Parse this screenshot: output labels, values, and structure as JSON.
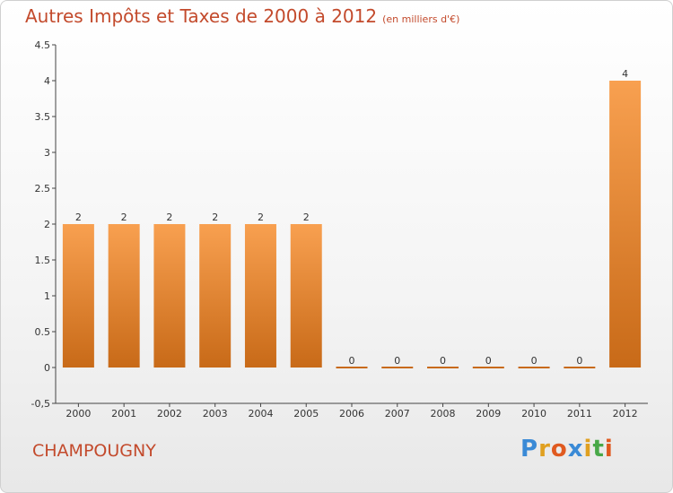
{
  "chart_data": {
    "type": "bar",
    "title": "Autres Impôts et Taxes de 2000 à 2012",
    "unit": "(en milliers d'€)",
    "categories": [
      "2000",
      "2001",
      "2002",
      "2003",
      "2004",
      "2005",
      "2006",
      "2007",
      "2008",
      "2009",
      "2010",
      "2011",
      "2012"
    ],
    "values": [
      2,
      2,
      2,
      2,
      2,
      2,
      0,
      0,
      0,
      0,
      0,
      0,
      4
    ],
    "ylim": [
      -0.5,
      4.5
    ],
    "yticks": [
      "-0,5",
      "0",
      "0.5",
      "1",
      "1.5",
      "2",
      "2.5",
      "3",
      "3.5",
      "4",
      "4.5"
    ],
    "ytick_values": [
      -0.5,
      0,
      0.5,
      1,
      1.5,
      2,
      2.5,
      3,
      3.5,
      4,
      4.5
    ],
    "grid": false,
    "bar_color_top": "#f8a050",
    "bar_color_bottom": "#c86a18",
    "label_color": "#c34a2c"
  },
  "footer": {
    "place": "CHAMPOUGNY",
    "logo": [
      "P",
      "r",
      "o",
      "x",
      "i",
      "t",
      "i"
    ],
    "logo_colors": [
      "#3a8ad6",
      "#e0a020",
      "#e05a20",
      "#3a8ad6",
      "#e0a020",
      "#48a848",
      "#e05a20"
    ]
  }
}
